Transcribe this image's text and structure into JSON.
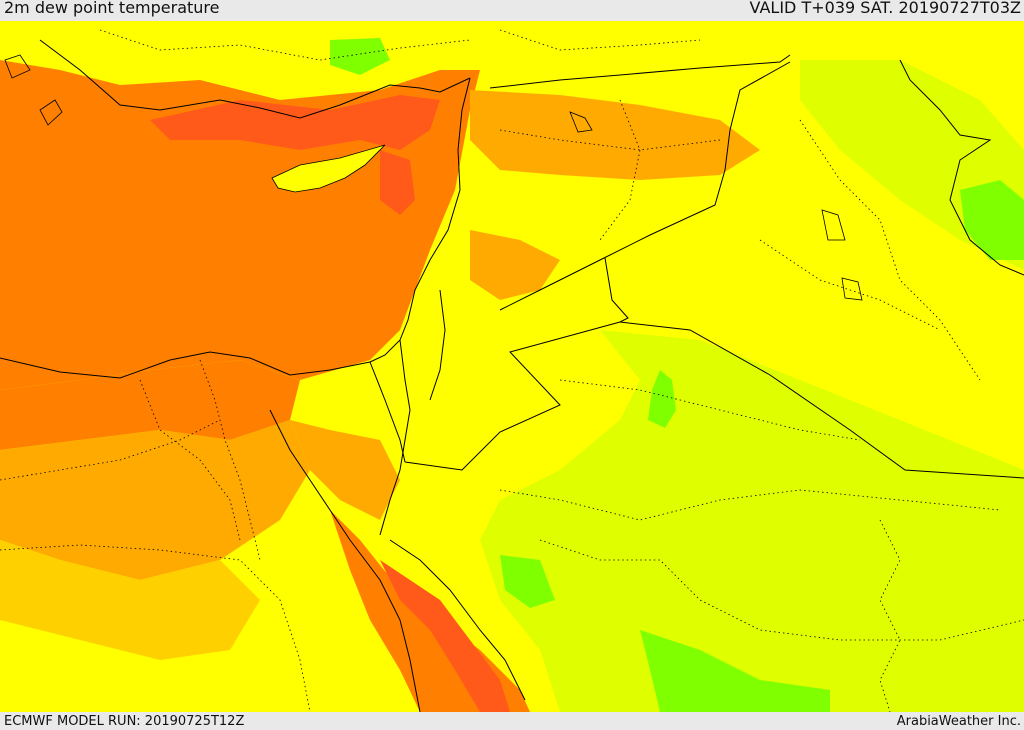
{
  "header": {
    "title": "2m dew point temperature",
    "valid_time": "VALID T+039 SAT. 20190727T03Z"
  },
  "footer": {
    "model_run": "ECMWF MODEL RUN: 20190725T12Z",
    "credit": "ArabiaWeather Inc."
  },
  "map": {
    "variable": "2m dew point temperature",
    "colors": {
      "dark_orange": "#ff5a1a",
      "orange": "#ff8000",
      "light_orange": "#ffaa00",
      "yellow_orange": "#ffd000",
      "yellow": "#ffff00",
      "yellow_green": "#dfff00",
      "green": "#80ff00"
    }
  }
}
